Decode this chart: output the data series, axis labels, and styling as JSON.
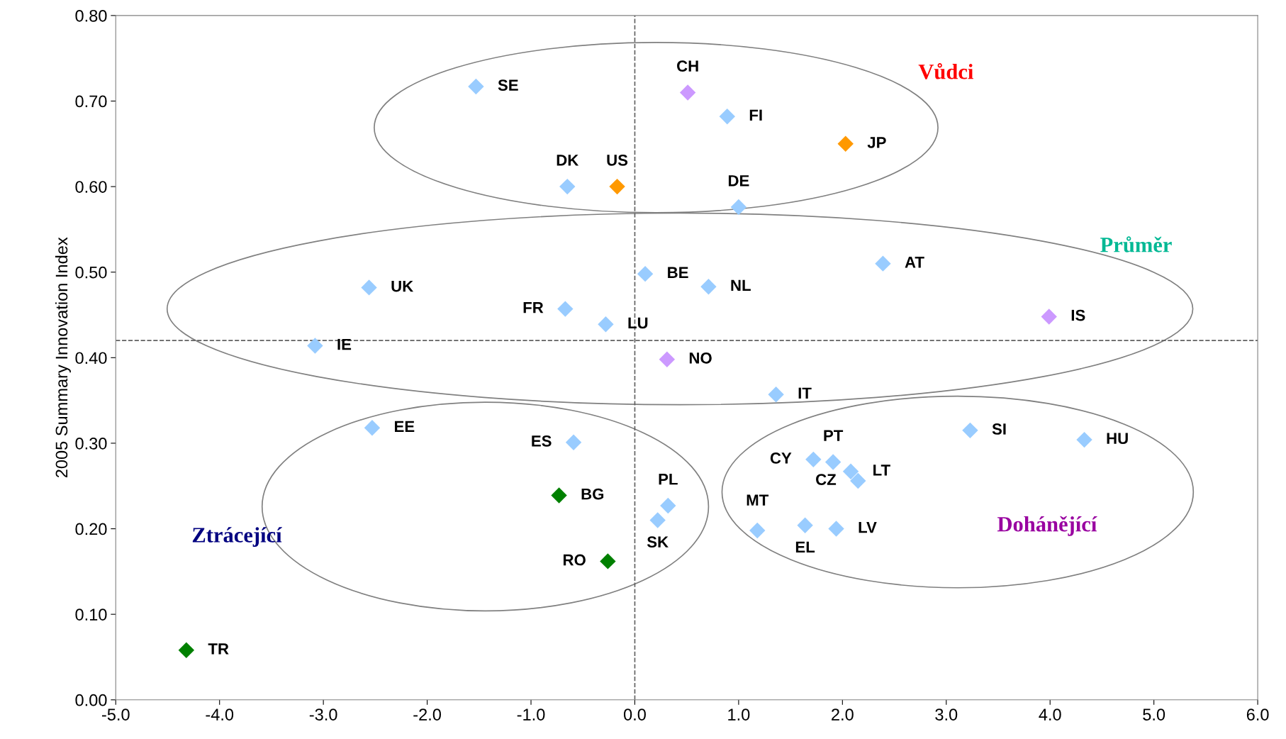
{
  "chart_data": {
    "type": "scatter",
    "ylabel": "2005 Summary Innovation Index",
    "marker": "diamond",
    "grid": false,
    "xlim": [
      -5.0,
      6.0
    ],
    "ylim": [
      0.0,
      0.8
    ],
    "xticks": [
      {
        "value": -5,
        "label": "-5.0"
      },
      {
        "value": -4,
        "label": "-4.0"
      },
      {
        "value": -3,
        "label": "-3.0"
      },
      {
        "value": -2,
        "label": "-2.0"
      },
      {
        "value": -1,
        "label": "-1.0"
      },
      {
        "value": 0,
        "label": "0.0"
      },
      {
        "value": 1,
        "label": "1.0"
      },
      {
        "value": 2,
        "label": "2.0"
      },
      {
        "value": 3,
        "label": "3.0"
      },
      {
        "value": 4,
        "label": "4.0"
      },
      {
        "value": 5,
        "label": "5.0"
      },
      {
        "value": 6,
        "label": "6.0"
      }
    ],
    "yticks": [
      {
        "value": 0,
        "label": "0.00"
      },
      {
        "value": 0.1,
        "label": "0.10"
      },
      {
        "value": 0.2,
        "label": "0.20"
      },
      {
        "value": 0.3,
        "label": "0.30"
      },
      {
        "value": 0.4,
        "label": "0.40"
      },
      {
        "value": 0.5,
        "label": "0.50"
      },
      {
        "value": 0.6,
        "label": "0.60"
      },
      {
        "value": 0.7,
        "label": "0.70"
      },
      {
        "value": 0.8,
        "label": "0.80"
      }
    ],
    "series": [
      {
        "x": [
          -1.53,
          0.51,
          0.89,
          2.03,
          -0.65,
          -0.17,
          1.0,
          2.39,
          -2.56,
          0.1,
          0.71,
          3.99,
          -0.67,
          -0.28,
          -3.08,
          0.31,
          1.36,
          -2.53,
          -0.59,
          3.23,
          4.33,
          1.91,
          1.72,
          2.08,
          2.15,
          -0.73,
          0.32,
          0.22,
          -0.26,
          1.18,
          1.64,
          1.94,
          -4.32
        ],
        "values": [
          0.717,
          0.71,
          0.682,
          0.65,
          0.6,
          0.6,
          0.576,
          0.51,
          0.482,
          0.498,
          0.483,
          0.448,
          0.457,
          0.439,
          0.414,
          0.398,
          0.357,
          0.318,
          0.301,
          0.315,
          0.304,
          0.278,
          0.281,
          0.267,
          0.256,
          0.239,
          0.227,
          0.21,
          0.162,
          0.198,
          0.204,
          0.2,
          0.058
        ],
        "colors": [
          "#99ccff",
          "#cc99ff",
          "#99ccff",
          "#ff9900",
          "#99ccff",
          "#ff9900",
          "#99ccff",
          "#99ccff",
          "#99ccff",
          "#99ccff",
          "#99ccff",
          "#cc99ff",
          "#99ccff",
          "#99ccff",
          "#99ccff",
          "#cc99ff",
          "#99ccff",
          "#99ccff",
          "#99ccff",
          "#99ccff",
          "#99ccff",
          "#99ccff",
          "#99ccff",
          "#99ccff",
          "#99ccff",
          "#008000",
          "#99ccff",
          "#99ccff",
          "#008000",
          "#99ccff",
          "#99ccff",
          "#99ccff",
          "#008000"
        ],
        "value_labels": [
          "SE",
          "CH",
          "FI",
          "JP",
          "DK",
          "US",
          "DE",
          "AT",
          "UK",
          "BE",
          "NL",
          "IS",
          "FR",
          "LU",
          "IE",
          "NO",
          "IT",
          "EE",
          "ES",
          "SI",
          "HU",
          "PT",
          "CY",
          "LT",
          "CZ",
          "BG",
          "PL",
          "SK",
          "RO",
          "MT",
          "EL",
          "LV",
          "TR"
        ]
      }
    ],
    "ref_lines": [
      {
        "axis": "x",
        "value": 0,
        "color": "#606060",
        "line_style": "dashed"
      },
      {
        "axis": "y",
        "value": 0.42,
        "color": "#606060",
        "line_style": "dashed"
      }
    ],
    "annotations": [
      "Vůdci",
      "Průměr",
      "Ztrácející",
      "Dohánějící"
    ]
  }
}
